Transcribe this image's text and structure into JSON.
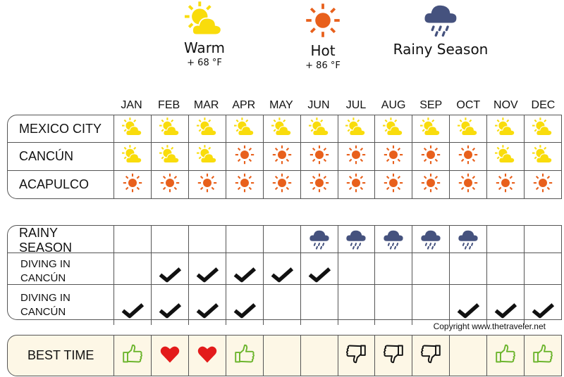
{
  "legend": [
    {
      "label": "Warm",
      "temp": "+ 68 °F",
      "icon": "warm"
    },
    {
      "label": "Hot",
      "temp": "+ 86 °F",
      "icon": "hot"
    },
    {
      "label": "Rainy Season",
      "temp": "",
      "icon": "rain"
    }
  ],
  "months": [
    "JAN",
    "FEB",
    "MAR",
    "APR",
    "MAY",
    "JUN",
    "JUL",
    "AUG",
    "SEP",
    "OCT",
    "NOV",
    "DEC"
  ],
  "climate": [
    {
      "label": "MEXICO CITY",
      "cells": [
        "warm",
        "warm",
        "warm",
        "warm",
        "warm",
        "warm",
        "warm",
        "warm",
        "warm",
        "warm",
        "warm",
        "warm"
      ]
    },
    {
      "label": "CANCÚN",
      "cells": [
        "warm",
        "warm",
        "warm",
        "hot",
        "hot",
        "hot",
        "hot",
        "hot",
        "hot",
        "hot",
        "warm",
        "warm"
      ]
    },
    {
      "label": "ACAPULCO",
      "cells": [
        "hot",
        "hot",
        "hot",
        "hot",
        "hot",
        "hot",
        "hot",
        "hot",
        "hot",
        "hot",
        "hot",
        "hot"
      ]
    }
  ],
  "activities": [
    {
      "label": "RAINY SEASON",
      "cells": [
        "",
        "",
        "",
        "",
        "",
        "rain",
        "rain",
        "rain",
        "rain",
        "rain",
        "",
        ""
      ]
    },
    {
      "label": "DIVING IN CANCÚN",
      "cells": [
        "",
        "check",
        "check",
        "check",
        "check",
        "check",
        "",
        "",
        "",
        "",
        "",
        ""
      ]
    },
    {
      "label": "DIVING IN CANCÚN",
      "cells": [
        "check",
        "check",
        "check",
        "check",
        "",
        "",
        "",
        "",
        "",
        "check",
        "check",
        "check"
      ]
    }
  ],
  "best": {
    "label": "BEST TIME",
    "cells": [
      "up",
      "heart",
      "heart",
      "up",
      "",
      "",
      "down",
      "down",
      "down",
      "",
      "up",
      "up"
    ]
  },
  "copyright": "Copyright www.thetraveler.net",
  "colors": {
    "warm": "#f9dc0c",
    "hot": "#e8601c",
    "rain": "#45527e",
    "up": "#6cb52d",
    "heart": "#e31b1b"
  }
}
